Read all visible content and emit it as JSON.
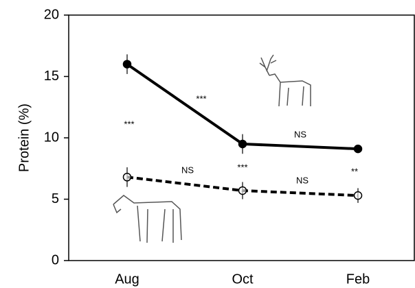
{
  "chart_data": {
    "type": "line",
    "y_label": "Protein (%)",
    "categories": [
      "Aug",
      "Oct",
      "Feb"
    ],
    "series": [
      {
        "color": "#000000",
        "line_style": "solid",
        "marker": "filled",
        "values": [
          16,
          9.5,
          9.1
        ],
        "errors": [
          0.8,
          0.8,
          0.3
        ]
      },
      {
        "color": "#000000",
        "line_style": "dashed",
        "marker": "open",
        "values": [
          6.8,
          5.7,
          5.3
        ],
        "errors": [
          0.8,
          0.7,
          0.6
        ]
      }
    ],
    "annotations": [
      "***",
      "***",
      "NS",
      "NS",
      "***",
      "NS",
      "**"
    ],
    "ylim": [
      0,
      20
    ],
    "yticks": [
      0,
      5,
      10,
      15,
      20
    ]
  }
}
